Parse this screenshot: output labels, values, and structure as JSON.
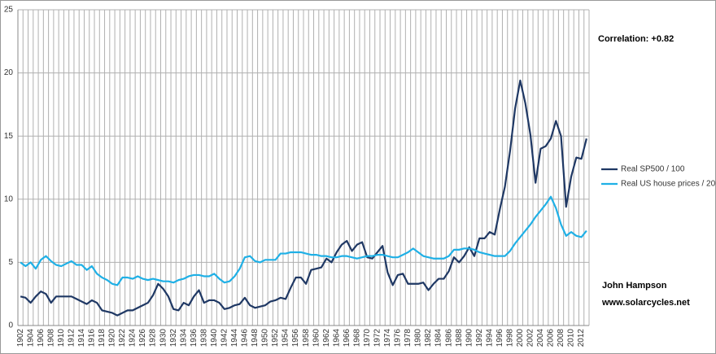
{
  "chart_data": {
    "type": "line",
    "categories": [
      "1902",
      null,
      "1904",
      null,
      "1906",
      null,
      "1908",
      null,
      "1910",
      null,
      "1912",
      null,
      "1914",
      null,
      "1916",
      null,
      "1918",
      null,
      "1920",
      null,
      "1922",
      null,
      "1924",
      null,
      "1926",
      null,
      "1928",
      null,
      "1930",
      null,
      "1932",
      null,
      "1934",
      null,
      "1936",
      null,
      "1938",
      null,
      "1940",
      null,
      "1942",
      null,
      "1944",
      null,
      "1946",
      null,
      "1948",
      null,
      "1950",
      null,
      "1952",
      null,
      "1954",
      null,
      "1956",
      null,
      "1958",
      null,
      "1960",
      null,
      "1962",
      null,
      "1964",
      null,
      "1966",
      null,
      "1968",
      null,
      "1970",
      null,
      "1972",
      null,
      "1974",
      null,
      "1976",
      null,
      "1978",
      null,
      "1980",
      null,
      "1982",
      null,
      "1984",
      null,
      "1986",
      null,
      "1988",
      null,
      "1990",
      null,
      "1992",
      null,
      "1994",
      null,
      "1996",
      null,
      "1998",
      null,
      "2000",
      null,
      "2002",
      null,
      "2004",
      null,
      "2006",
      null,
      "2008",
      null,
      "2010",
      null,
      "2012",
      null
    ],
    "series": [
      {
        "name": "Real SP500 / 100",
        "color": "#1f3864",
        "values": [
          2.3,
          2.2,
          1.8,
          2.3,
          2.7,
          2.5,
          1.8,
          2.3,
          2.3,
          2.3,
          2.3,
          2.1,
          1.9,
          1.7,
          2.0,
          1.8,
          1.2,
          1.1,
          1.0,
          0.8,
          1.0,
          1.2,
          1.2,
          1.4,
          1.6,
          1.8,
          2.4,
          3.3,
          2.9,
          2.3,
          1.3,
          1.2,
          1.8,
          1.6,
          2.3,
          2.8,
          1.8,
          2.0,
          2.0,
          1.8,
          1.3,
          1.4,
          1.6,
          1.7,
          2.2,
          1.6,
          1.4,
          1.5,
          1.6,
          1.9,
          2.0,
          2.2,
          2.1,
          3.0,
          3.8,
          3.8,
          3.3,
          4.4,
          4.5,
          4.6,
          5.3,
          5.0,
          5.8,
          6.4,
          6.7,
          5.9,
          6.4,
          6.6,
          5.4,
          5.3,
          5.8,
          6.3,
          4.2,
          3.2,
          4.0,
          4.1,
          3.3,
          3.3,
          3.3,
          3.4,
          2.8,
          3.3,
          3.7,
          3.7,
          4.3,
          5.4,
          5.0,
          5.5,
          6.2,
          5.5,
          6.9,
          6.9,
          7.4,
          7.2,
          9.2,
          11.0,
          13.8,
          17.2,
          19.4,
          17.6,
          15.1,
          11.3,
          14.0,
          14.2,
          14.8,
          16.2,
          15.0,
          9.4,
          11.8,
          13.3,
          13.2,
          14.8
        ]
      },
      {
        "name": "Real US house prices / 20",
        "color": "#1fb0e6",
        "values": [
          5.0,
          4.7,
          5.0,
          4.5,
          5.2,
          5.5,
          5.1,
          4.8,
          4.7,
          4.9,
          5.1,
          4.8,
          4.8,
          4.4,
          4.7,
          4.1,
          3.8,
          3.6,
          3.3,
          3.2,
          3.8,
          3.8,
          3.7,
          3.9,
          3.7,
          3.6,
          3.7,
          3.6,
          3.5,
          3.5,
          3.4,
          3.6,
          3.7,
          3.9,
          4.0,
          4.0,
          3.9,
          3.9,
          4.1,
          3.7,
          3.4,
          3.5,
          3.9,
          4.5,
          5.4,
          5.5,
          5.1,
          5.0,
          5.2,
          5.2,
          5.2,
          5.7,
          5.7,
          5.8,
          5.8,
          5.8,
          5.7,
          5.6,
          5.6,
          5.5,
          5.5,
          5.4,
          5.4,
          5.5,
          5.5,
          5.4,
          5.3,
          5.4,
          5.5,
          5.5,
          5.6,
          5.6,
          5.5,
          5.4,
          5.4,
          5.6,
          5.8,
          6.1,
          5.8,
          5.5,
          5.4,
          5.3,
          5.3,
          5.3,
          5.5,
          6.0,
          6.0,
          6.1,
          6.1,
          6.0,
          5.8,
          5.7,
          5.6,
          5.5,
          5.5,
          5.5,
          5.9,
          6.5,
          7.0,
          7.5,
          8.0,
          8.6,
          9.1,
          9.6,
          10.2,
          9.3,
          8.0,
          7.1,
          7.4,
          7.1,
          7.0,
          7.5
        ]
      }
    ],
    "ylim": [
      0,
      25
    ],
    "yticks": [
      0,
      5,
      10,
      15,
      20,
      25
    ],
    "grid": true,
    "legend": "right",
    "annotations": [
      "Correlation: +0.82",
      "John Hampson",
      "www.solarcycles.net"
    ]
  }
}
